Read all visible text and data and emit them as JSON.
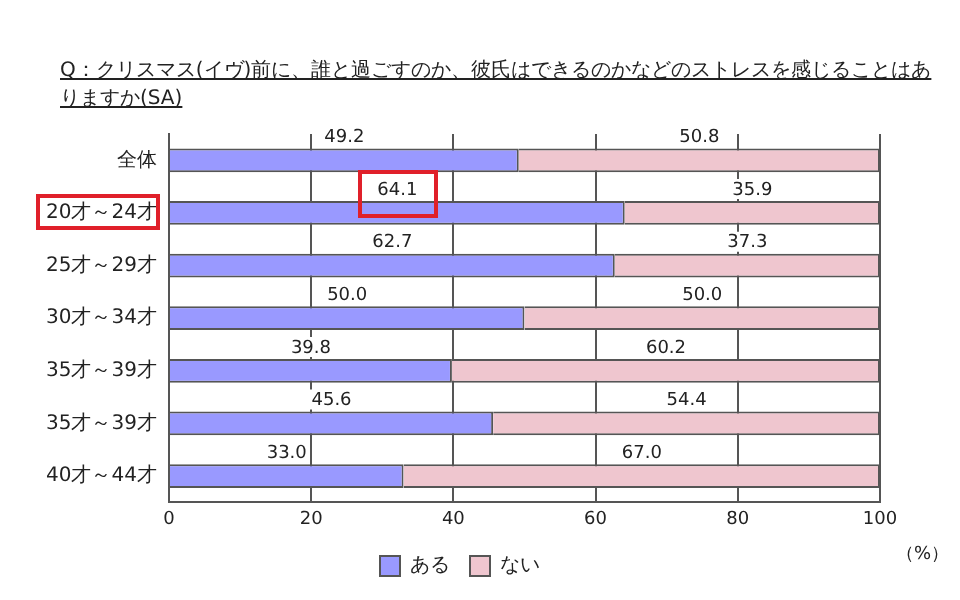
{
  "chart_data": {
    "type": "bar",
    "orientation": "horizontal",
    "stacked": true,
    "title": "Q：クリスマス(イヴ)前に、誰と過ごすのか、彼氏はできるのかなどのストレスを感じることはありますか(SA)",
    "xlabel": "（%）",
    "categories": [
      "全体",
      "20才～24才",
      "25才～29才",
      "30才～34才",
      "35才～39才",
      "35才～39才",
      "40才～44才"
    ],
    "series": [
      {
        "name": "ある",
        "color": "#9999ff",
        "values": [
          49.2,
          64.1,
          62.7,
          50.0,
          39.8,
          45.6,
          33.0
        ],
        "value_labels": [
          "49.2",
          "64.1",
          "62.7",
          "50.0",
          "39.8",
          "45.6",
          "33.0"
        ]
      },
      {
        "name": "ない",
        "color": "#efc6cf",
        "values": [
          50.8,
          35.9,
          37.3,
          50.0,
          60.2,
          54.4,
          67.0
        ],
        "value_labels": [
          "50.8",
          "35.9",
          "37.3",
          "50.0",
          "60.2",
          "54.4",
          "67.0"
        ]
      }
    ],
    "xlim": [
      0,
      100
    ],
    "xticks": [
      0,
      20,
      40,
      60,
      80,
      100
    ],
    "grid": "x",
    "legend": "bottom"
  }
}
